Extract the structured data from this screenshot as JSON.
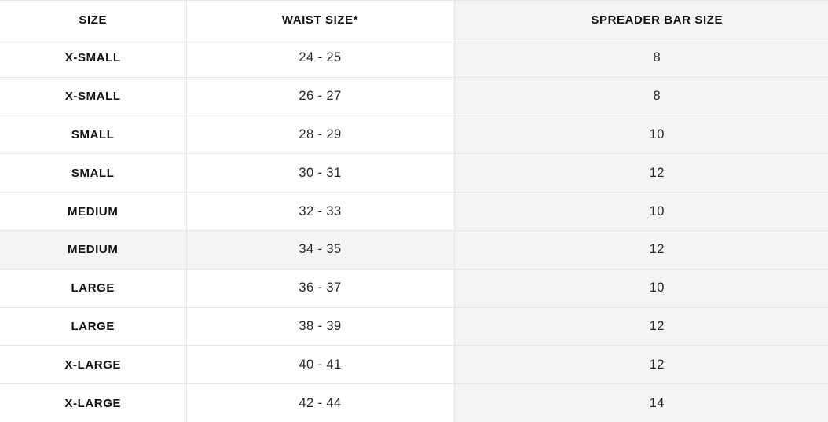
{
  "table": {
    "columns": [
      {
        "key": "size",
        "label": "SIZE"
      },
      {
        "key": "waist",
        "label": "WAIST SIZE*"
      },
      {
        "key": "bar",
        "label": "SPREADER BAR SIZE"
      }
    ],
    "rows": [
      {
        "size": "X-SMALL",
        "waist": "24 - 25",
        "bar": "8"
      },
      {
        "size": "X-SMALL",
        "waist": "26 - 27",
        "bar": "8"
      },
      {
        "size": "SMALL",
        "waist": "28 - 29",
        "bar": "10"
      },
      {
        "size": "SMALL",
        "waist": "30 - 31",
        "bar": "12"
      },
      {
        "size": "MEDIUM",
        "waist": "32 - 33",
        "bar": "10"
      },
      {
        "size": "MEDIUM",
        "waist": "34 - 35",
        "bar": "12"
      },
      {
        "size": "LARGE",
        "waist": "36 - 37",
        "bar": "10"
      },
      {
        "size": "LARGE",
        "waist": "38 - 39",
        "bar": "12"
      },
      {
        "size": "X-LARGE",
        "waist": "40 - 41",
        "bar": "12"
      },
      {
        "size": "X-LARGE",
        "waist": "42 - 44",
        "bar": "14"
      }
    ],
    "highlighted_row_index": 5,
    "colors": {
      "shaded_column_bg": "#f4f4f4",
      "highlight_row_bg": "#f4f4f4",
      "grid_line": "#e6e6e6",
      "header_text": "#121212",
      "body_text": "#262626"
    }
  }
}
